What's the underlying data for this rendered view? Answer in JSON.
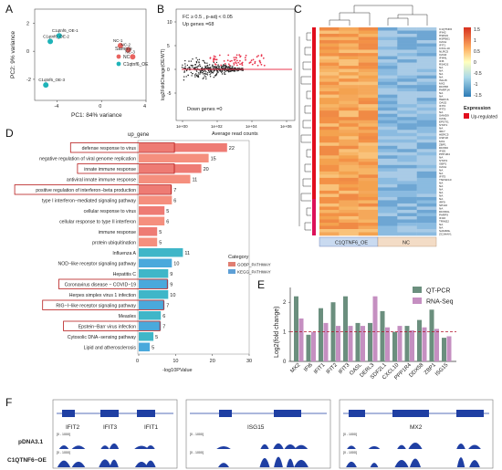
{
  "panel_labels": [
    "A",
    "B",
    "C",
    "D",
    "E",
    "F"
  ],
  "chart_data": [
    {
      "id": "A",
      "type": "scatter",
      "xlabel": "PC1: 84% variance",
      "ylabel": "PC2: 9% variance",
      "xlim": [
        -6,
        4
      ],
      "ylim": [
        -3.5,
        3
      ],
      "xticks": [
        -4,
        0,
        4
      ],
      "yticks": [
        -2,
        0,
        2
      ],
      "legend": {
        "title": "Sample",
        "placement": "right"
      },
      "series": [
        {
          "name": "NC",
          "color": "#e8635f",
          "points": [
            {
              "x": 1.7,
              "y": 0.4,
              "label": "NC-1"
            },
            {
              "x": 2.4,
              "y": 0.1,
              "label": "NC-2"
            },
            {
              "x": 2.8,
              "y": -0.4,
              "label": "NC-3"
            }
          ]
        },
        {
          "name": "C1qtnf6_OE",
          "color": "#1fb3b8",
          "points": [
            {
              "x": -3.8,
              "y": 1.1,
              "label": "C1qtnf6_OE-1"
            },
            {
              "x": -4.6,
              "y": 0.7,
              "label": "C1qtnf6_OE-2"
            },
            {
              "x": -5.0,
              "y": -2.4,
              "label": "C1qtnf6_OE-3"
            }
          ]
        }
      ]
    },
    {
      "id": "B",
      "type": "scatter",
      "xlabel": "Average read counts",
      "ylabel": "log2FoldChange(OE/WT)",
      "x_ticklabels": [
        "1e+00",
        "1e+02",
        "1e+04",
        "1e+06"
      ],
      "yticks": [
        -5,
        0,
        5,
        10
      ],
      "annotations": [
        "FC ≥ 0.5 ,  p-adj < 0.05",
        "Up genes =68",
        "Down genes =0"
      ],
      "colors": {
        "nonsig": "#222222",
        "up": "#e8374f",
        "trend": "#e8374f"
      }
    },
    {
      "id": "C",
      "type": "heatmap",
      "columns": [
        "C1QTNF6_OE",
        "NC"
      ],
      "column_colors": [
        "#c9daf0",
        "#f3dcc6"
      ],
      "legend_ticks": [
        "1.5",
        "1",
        "0.5",
        "0",
        "-0.5",
        "-1",
        "-1.5"
      ],
      "legend_title": "Expression",
      "expression_legend": "Up-regulated",
      "gene_labels": [
        "C1QTNF6",
        "IFIH2",
        "HSPA6",
        "HSPB01",
        "OAS1",
        "IFIT1",
        "CXCL10",
        "NLRC5",
        "OAS3",
        "IFI44L",
        "IFI6",
        "RSAD2",
        "NA",
        "NA",
        "NA",
        "NA",
        "ISG15",
        "MX2",
        "DDX58",
        "PARP14",
        "NA",
        "NA",
        "HERC6",
        "OAS2",
        "IFIT2",
        "IFIT3",
        "NA",
        "SAMD9",
        "OASL",
        "EPSTI1",
        "STAT1",
        "NA",
        "IRF7",
        "HERC5",
        "USP18",
        "MX1",
        "ZBP1",
        "DDX60",
        "IFI35",
        "PPP1R4",
        "NA",
        "STAT2",
        "GBP1",
        "OAS1",
        "NA",
        "NA",
        "IFIT5",
        "TNFSF10",
        "NA",
        "NA",
        "NA",
        "NA",
        "NA",
        "NA",
        "IRF9",
        "SP110",
        "NA",
        "DDX60L",
        "PARP9",
        "IFI16",
        "TRIM22",
        "NA",
        "NA",
        "SAMD9L",
        "ZC3HAV1"
      ]
    },
    {
      "id": "D",
      "type": "bar",
      "title": "up_gene",
      "xlabel": "-log10PValue",
      "xlim": [
        0,
        30
      ],
      "xticks": [
        0,
        10,
        20,
        30
      ],
      "legend": {
        "title": "Category",
        "entries": [
          {
            "name": "GOBP_PATHWAY",
            "color": "#e07e72"
          },
          {
            "name": "KEGG_PATHWAY",
            "color": "#5d9fd6"
          }
        ],
        "placement": "right"
      },
      "series": [
        {
          "name": "GOBP_PATHWAY",
          "categories": [
            "defense response to virus",
            "negative regulation of viral genome replication",
            "innate immune response",
            "antiviral innate immune response",
            "positive regulation of interferon−beta production",
            "type I interferon−mediated signaling pathway",
            "cellular response to virus",
            "cellular response to type II interferon",
            "immune response",
            "protein ubiquitination"
          ],
          "values": [
            24,
            19,
            17,
            14,
            9,
            9,
            7,
            7,
            5,
            5
          ],
          "counts": [
            22,
            15,
            20,
            11,
            7,
            6,
            5,
            6,
            5,
            5
          ],
          "boxed": [
            true,
            false,
            true,
            false,
            true,
            false,
            false,
            false,
            false,
            false
          ]
        },
        {
          "name": "KEGG_PATHWAY",
          "categories": [
            "Influenza A",
            "NOD−like receptor signaling pathway",
            "Hepatitis C",
            "Coronavirus disease − COVID−19",
            "Herpes simplex virus 1 infection",
            "RIG−I−like receptor signaling pathway",
            "Measles",
            "Epstein−Barr virus infection",
            "Cytosolic DNA−sensing pathway",
            "Lipid and atherosclerosis"
          ],
          "values": [
            12,
            9,
            8,
            8,
            8,
            7,
            6,
            6,
            4,
            3
          ],
          "counts": [
            11,
            10,
            9,
            9,
            10,
            7,
            6,
            7,
            5,
            5
          ],
          "boxed": [
            false,
            false,
            false,
            true,
            false,
            true,
            false,
            true,
            false,
            false
          ]
        }
      ]
    },
    {
      "id": "E",
      "type": "bar",
      "ylabel": "Log2(fold change)",
      "ylim": [
        0,
        2.5
      ],
      "yticks": [
        0,
        1,
        2
      ],
      "reference_line": 1,
      "categories": [
        "MX2",
        "IFI6",
        "IFIT1",
        "IFIT2",
        "IFIT3",
        "OASL",
        "DERL3",
        "SDF2L1",
        "CXCL10",
        "PPP1R4",
        "DDX58",
        "ZBP1",
        "ISG15"
      ],
      "series": [
        {
          "name": "QT-PCR",
          "color": "#6b8f7e",
          "values": [
            2.2,
            0.9,
            1.8,
            2.0,
            2.2,
            1.3,
            1.3,
            1.7,
            1.0,
            1.2,
            1.4,
            1.75,
            0.8
          ]
        },
        {
          "name": "RNA-Seq",
          "color": "#c58fc1",
          "values": [
            1.45,
            1.0,
            1.3,
            1.2,
            1.2,
            1.2,
            2.2,
            1.15,
            1.2,
            1.05,
            1.15,
            1.1,
            0.85
          ]
        }
      ]
    },
    {
      "id": "F",
      "type": "area",
      "tracks": [
        "pDNA3.1",
        "C1QTNF6−OE"
      ],
      "range_label": "[0 - 1000]",
      "loci": [
        {
          "genes": [
            "IFIT2",
            "IFIT3",
            "IFIT1"
          ]
        },
        {
          "genes": [
            "ISG15"
          ]
        },
        {
          "genes": [
            "MX2"
          ]
        }
      ],
      "color": "#1f3fa3"
    }
  ]
}
